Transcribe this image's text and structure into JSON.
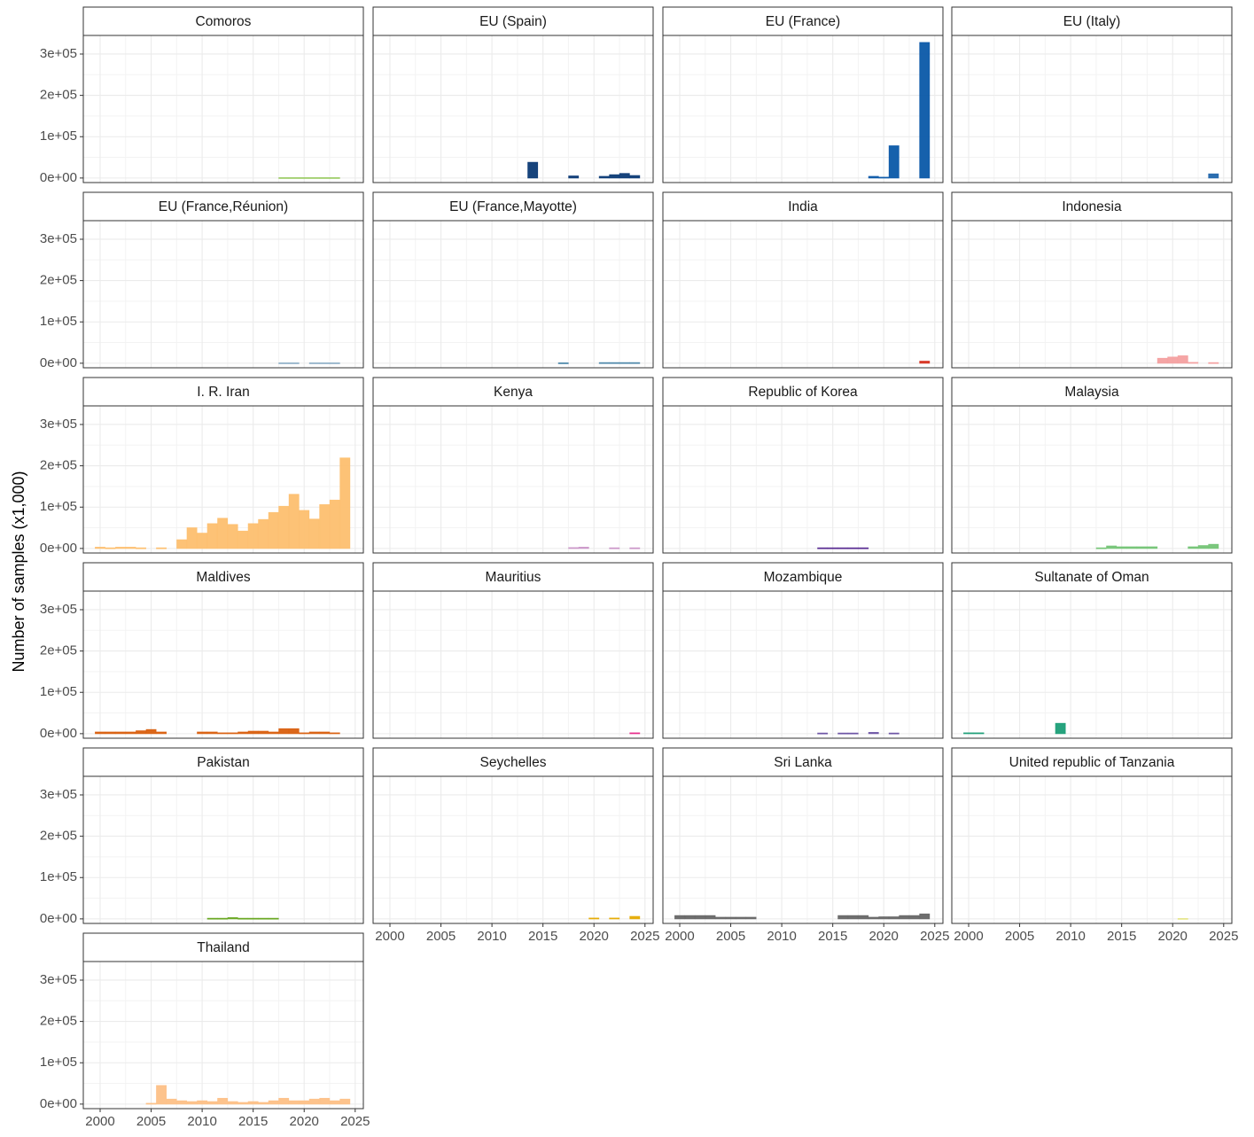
{
  "chart_data": {
    "type": "bar",
    "ylabel": "Number of samples (x1,000)",
    "xlim": [
      1998.35,
      2025.8
    ],
    "xticks": [
      2000,
      2005,
      2010,
      2015,
      2020,
      2025
    ],
    "ylim": [
      -11000,
      345000
    ],
    "yticks": [
      {
        "value": 0,
        "label": "0e+00"
      },
      {
        "value": 100000,
        "label": "1e+05"
      },
      {
        "value": 200000,
        "label": "2e+05"
      },
      {
        "value": 300000,
        "label": "3e+05"
      }
    ],
    "grid": true,
    "facets": [
      {
        "title": "Comoros",
        "color": "#9ccc65",
        "x": [
          2018,
          2019,
          2020,
          2021,
          2022,
          2023
        ],
        "values": [
          1000,
          1000,
          1000,
          1000,
          1000,
          1000
        ]
      },
      {
        "title": "EU (Spain)",
        "color": "#0b3a75",
        "x": [
          2014,
          2018,
          2021,
          2022,
          2023,
          2024
        ],
        "values": [
          38000,
          5000,
          4000,
          8000,
          11000,
          6000
        ]
      },
      {
        "title": "EU (France)",
        "color": "#0a58a8",
        "x": [
          2019,
          2020,
          2021,
          2024
        ],
        "values": [
          4000,
          2000,
          78000,
          328000
        ]
      },
      {
        "title": "EU (Italy)",
        "color": "#2166ac",
        "x": [
          2024
        ],
        "values": [
          10000
        ]
      },
      {
        "title": "EU (France,Réunion)",
        "color": "#8fb0c8",
        "x": [
          2018,
          2019,
          2021,
          2022,
          2023
        ],
        "values": [
          1000,
          1000,
          1000,
          1000,
          1000
        ]
      },
      {
        "title": "EU (France,Mayotte)",
        "color": "#4a86a8",
        "x": [
          2017,
          2021,
          2022,
          2023,
          2024
        ],
        "values": [
          1000,
          1500,
          1500,
          1500,
          1500
        ]
      },
      {
        "title": "India",
        "color": "#d7301f",
        "x": [
          2024
        ],
        "values": [
          5000
        ]
      },
      {
        "title": "Indonesia",
        "color": "#f4a0a0",
        "x": [
          2019,
          2020,
          2021,
          2022,
          2024
        ],
        "values": [
          12000,
          15000,
          18000,
          2000,
          1500
        ]
      },
      {
        "title": "I. R. Iran",
        "color": "#fdbf6f",
        "x": [
          2000,
          2001,
          2002,
          2003,
          2004,
          2006,
          2008,
          2009,
          2010,
          2011,
          2012,
          2013,
          2014,
          2015,
          2016,
          2017,
          2018,
          2019,
          2020,
          2021,
          2022,
          2023,
          2024
        ],
        "values": [
          3000,
          1500,
          3000,
          3000,
          1500,
          1500,
          21000,
          50000,
          37000,
          60000,
          73000,
          58000,
          42000,
          60000,
          70000,
          87000,
          102000,
          131000,
          92000,
          71000,
          106000,
          117000,
          219000
        ]
      },
      {
        "title": "Kenya",
        "color": "#c994c7",
        "x": [
          2018,
          2019,
          2022,
          2024
        ],
        "values": [
          2000,
          3000,
          1500,
          1500
        ]
      },
      {
        "title": "Republic of Korea",
        "color": "#54278f",
        "x": [
          2014,
          2015,
          2016,
          2017,
          2018
        ],
        "values": [
          1500,
          1500,
          1500,
          1500,
          1500
        ]
      },
      {
        "title": "Malaysia",
        "color": "#74c476",
        "x": [
          2013,
          2014,
          2015,
          2016,
          2017,
          2018,
          2022,
          2023,
          2024
        ],
        "values": [
          1500,
          6000,
          4000,
          4000,
          4000,
          4000,
          4000,
          7000,
          10000
        ]
      },
      {
        "title": "Maldives",
        "color": "#d95f0e",
        "x": [
          2000,
          2001,
          2002,
          2003,
          2004,
          2005,
          2006,
          2010,
          2011,
          2012,
          2013,
          2014,
          2015,
          2016,
          2017,
          2018,
          2019,
          2020,
          2021,
          2022,
          2023
        ],
        "values": [
          4000,
          4000,
          4000,
          4000,
          7000,
          10000,
          4000,
          4000,
          4000,
          2000,
          2000,
          4000,
          6000,
          6000,
          4000,
          12000,
          12000,
          2000,
          4000,
          4000,
          2000
        ]
      },
      {
        "title": "Mauritius",
        "color": "#e7298a",
        "x": [
          2024
        ],
        "values": [
          2000
        ]
      },
      {
        "title": "Mozambique",
        "color": "#6a51a3",
        "x": [
          2014,
          2016,
          2017,
          2019,
          2021
        ],
        "values": [
          1500,
          1500,
          1500,
          3000,
          1500
        ]
      },
      {
        "title": "Sultanate of Oman",
        "color": "#1b9e77",
        "x": [
          2000,
          2001,
          2009
        ],
        "values": [
          2000,
          2000,
          25000
        ]
      },
      {
        "title": "Pakistan",
        "color": "#66a61e",
        "x": [
          2011,
          2012,
          2013,
          2014,
          2015,
          2016,
          2017
        ],
        "values": [
          1500,
          1500,
          3000,
          1500,
          1500,
          1500,
          1500
        ]
      },
      {
        "title": "Seychelles",
        "color": "#e6ab02",
        "x": [
          2020,
          2022,
          2024
        ],
        "values": [
          2000,
          2000,
          6000
        ]
      },
      {
        "title": "Sri Lanka",
        "color": "#666666",
        "x": [
          2000,
          2001,
          2002,
          2003,
          2004,
          2005,
          2006,
          2007,
          2016,
          2017,
          2018,
          2019,
          2020,
          2021,
          2022,
          2023,
          2024
        ],
        "values": [
          8000,
          8000,
          8000,
          8000,
          4000,
          4000,
          4000,
          4000,
          8000,
          8000,
          8000,
          4000,
          5000,
          5000,
          8000,
          8000,
          12000
        ]
      },
      {
        "title": "United republic of Tanzania",
        "color": "#e6e68a",
        "x": [
          2021
        ],
        "values": [
          1000
        ]
      },
      {
        "title": "Thailand",
        "color": "#fdc086",
        "x": [
          2005,
          2006,
          2007,
          2008,
          2009,
          2010,
          2011,
          2012,
          2013,
          2014,
          2015,
          2016,
          2017,
          2018,
          2019,
          2020,
          2021,
          2022,
          2023,
          2024
        ],
        "values": [
          2000,
          45000,
          12000,
          8000,
          6000,
          8000,
          6000,
          14000,
          6000,
          4000,
          6000,
          4000,
          8000,
          14000,
          8000,
          8000,
          12000,
          14000,
          8000,
          12000
        ]
      }
    ]
  }
}
